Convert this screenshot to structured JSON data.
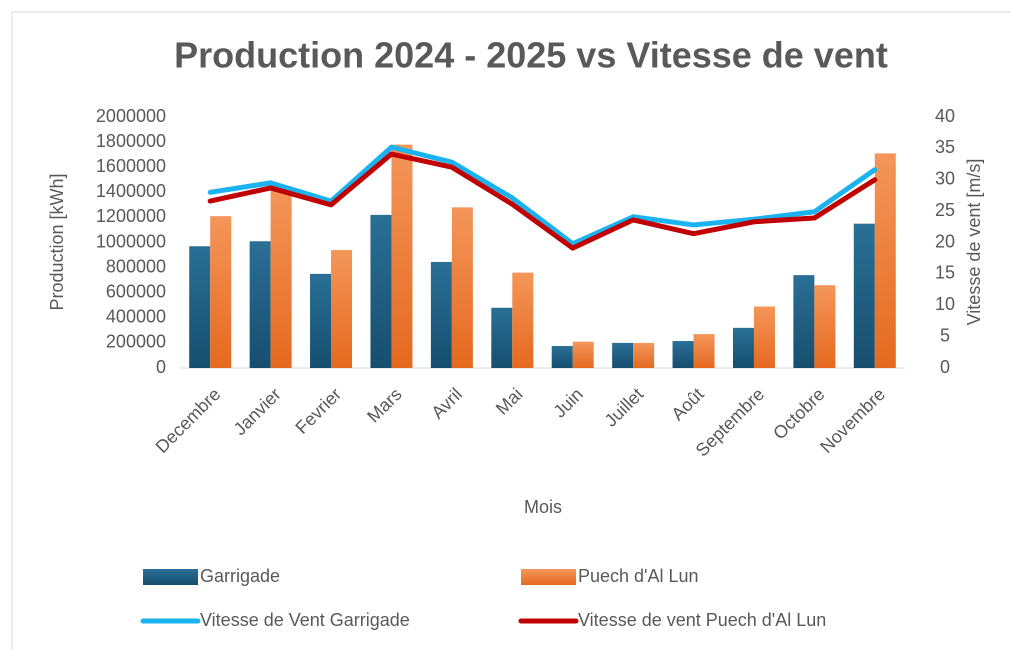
{
  "chart_data": {
    "type": "bar",
    "title": "Production 2024 - 2025 vs Vitesse de vent",
    "x_label": "Mois",
    "y_label": "Production [kWh]",
    "y2_label": "Vitesse de vent [m/s]",
    "categories": [
      "Decembre",
      "Janvier",
      "Fevrier",
      "Mars",
      "Avril",
      "Mai",
      "Juin",
      "Juillet",
      "Août",
      "Septembre",
      "Octobre",
      "Novembre"
    ],
    "series": [
      {
        "name": "Garrigade",
        "type": "bar",
        "color": "#1f5f82",
        "values": [
          970000,
          1010000,
          750000,
          1220000,
          845000,
          480000,
          175000,
          200000,
          215000,
          320000,
          740000,
          1150000
        ]
      },
      {
        "name": "Puech d'Al Lun",
        "type": "bar",
        "color": "#ed7d31",
        "values": [
          1210000,
          1450000,
          940000,
          1780000,
          1280000,
          760000,
          210000,
          200000,
          270000,
          490000,
          660000,
          1710000
        ]
      },
      {
        "name": "Vitesse de Vent Garrigade",
        "type": "line",
        "axis": "y2",
        "color": "#1ab3ef",
        "values": [
          28.0,
          29.5,
          26.6,
          35.2,
          32.8,
          27.1,
          19.8,
          24.1,
          22.8,
          23.7,
          24.9,
          31.6
        ]
      },
      {
        "name": "Vitesse de vent Puech d'Al Lun",
        "type": "line",
        "axis": "y2",
        "color": "#c00000",
        "values": [
          26.6,
          28.7,
          26.0,
          34.1,
          32.0,
          26.1,
          19.1,
          23.6,
          21.4,
          23.3,
          23.9,
          30.0
        ]
      }
    ],
    "ylim": [
      0,
      2000000
    ],
    "yticks": [
      0,
      200000,
      400000,
      600000,
      800000,
      1000000,
      1200000,
      1400000,
      1600000,
      1800000,
      2000000
    ],
    "y2lim": [
      0,
      40
    ],
    "y2ticks": [
      0,
      5,
      10,
      15,
      20,
      25,
      30,
      35,
      40
    ],
    "grid": false,
    "legend": "bottom"
  }
}
